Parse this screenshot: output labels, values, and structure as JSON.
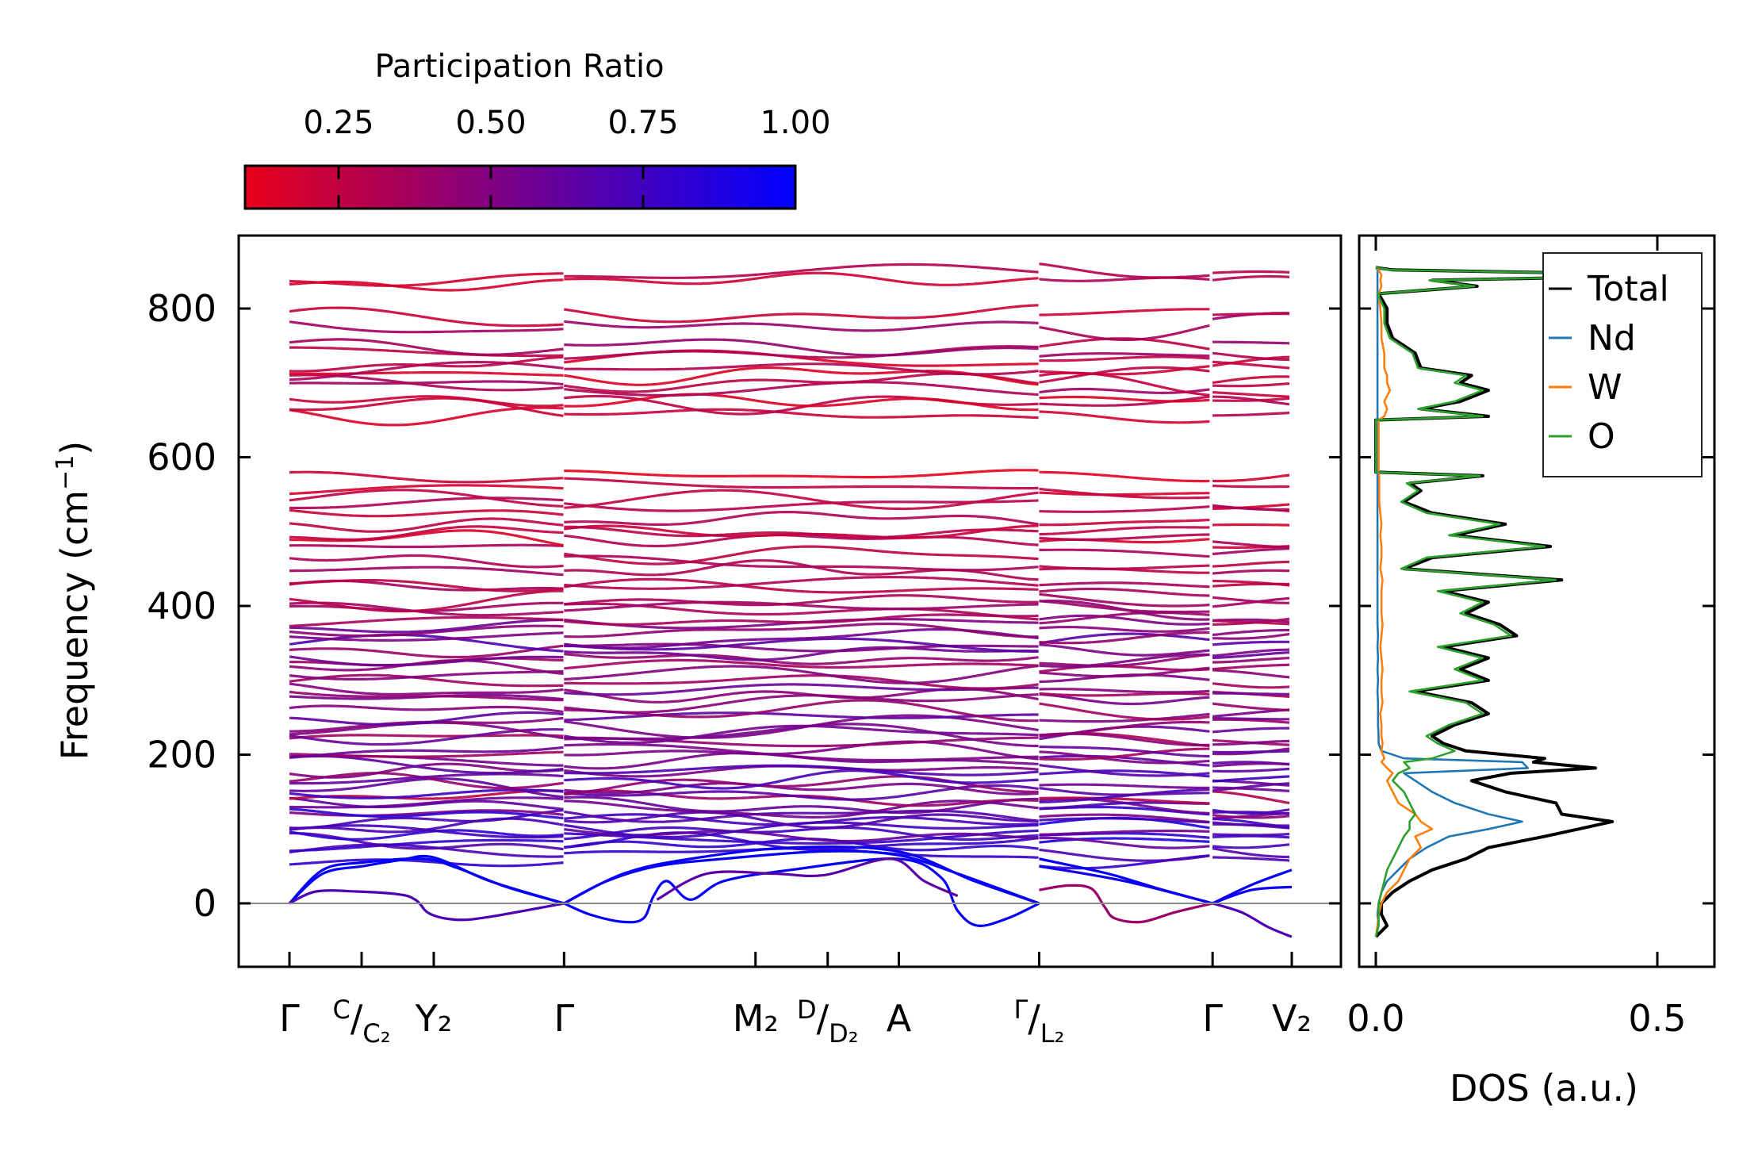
{
  "chart_data": {
    "type": "line",
    "panels": [
      "phonon-band-structure",
      "density-of-states"
    ],
    "colorbar": {
      "title": "Participation Ratio",
      "range": [
        0.095,
        1.0
      ],
      "ticks": [
        0.25,
        0.5,
        0.75,
        1.0
      ],
      "tick_labels": [
        "0.25",
        "0.50",
        "0.75",
        "1.00"
      ],
      "color_low": "#e8001a",
      "color_high": "#0000ff"
    },
    "bands": {
      "ylabel_main": "Frequency (cm",
      "ylabel_sup": "−1",
      "ylabel_close": ")",
      "ylim": [
        -90,
        900
      ],
      "yticks": [
        0,
        200,
        400,
        600,
        800
      ],
      "ytick_labels": [
        "0",
        "200",
        "400",
        "600",
        "800"
      ],
      "zero_line_color": "#8c8c8c",
      "k_distance": [
        0,
        0.216,
        0.432,
        0.822,
        1.395,
        1.611,
        1.824,
        2.244,
        2.763,
        3.0
      ],
      "k_labels": [
        {
          "text": "Γ"
        },
        {
          "top": "C",
          "bottom": "C₂"
        },
        {
          "text": "Y₂"
        },
        {
          "text": "Γ"
        },
        {
          "text": "M₂"
        },
        {
          "top": "D",
          "bottom": "D₂"
        },
        {
          "text": "A"
        },
        {
          "top": "Γ",
          "bottom": "L₂"
        },
        {
          "text": "Γ"
        },
        {
          "text": "V₂"
        }
      ],
      "segments": [
        [
          0,
          0.822
        ],
        [
          0.822,
          2.244
        ],
        [
          2.244,
          2.763
        ],
        [
          2.763,
          3.0
        ]
      ],
      "optical_band_freqs": [
        62,
        70,
        78,
        85,
        92,
        98,
        104,
        110,
        116,
        122,
        128,
        134,
        140,
        146,
        152,
        160,
        168,
        176,
        184,
        192,
        200,
        208,
        216,
        224,
        232,
        240,
        250,
        262,
        272,
        282,
        292,
        300,
        310,
        318,
        326,
        334,
        342,
        350,
        358,
        366,
        374,
        382,
        390,
        398,
        408,
        420,
        432,
        445,
        460,
        472,
        485,
        495,
        505,
        520,
        535,
        548,
        560,
        573,
        660,
        668,
        678,
        688,
        698,
        708,
        718,
        728,
        738,
        752,
        775,
        790,
        838,
        846
      ],
      "optical_band_pr": [
        0.8,
        0.75,
        0.82,
        0.7,
        0.78,
        0.66,
        0.8,
        0.72,
        0.6,
        0.76,
        0.55,
        0.7,
        0.35,
        0.72,
        0.6,
        0.5,
        0.68,
        0.58,
        0.62,
        0.5,
        0.45,
        0.6,
        0.42,
        0.55,
        0.5,
        0.48,
        0.55,
        0.45,
        0.5,
        0.4,
        0.52,
        0.45,
        0.5,
        0.42,
        0.48,
        0.55,
        0.45,
        0.6,
        0.5,
        0.42,
        0.55,
        0.4,
        0.35,
        0.3,
        0.3,
        0.28,
        0.25,
        0.3,
        0.26,
        0.3,
        0.22,
        0.28,
        0.25,
        0.3,
        0.27,
        0.24,
        0.2,
        0.18,
        0.22,
        0.25,
        0.2,
        0.3,
        0.26,
        0.22,
        0.28,
        0.24,
        0.3,
        0.35,
        0.33,
        0.28,
        0.22,
        0.25
      ],
      "acoustic_branches": [
        {
          "pr": 0.98,
          "points": [
            [
              0,
              0
            ],
            [
              0.1,
              40
            ],
            [
              0.22,
              50
            ],
            [
              0.33,
              58
            ],
            [
              0.43,
              62
            ],
            [
              0.6,
              30
            ],
            [
              0.822,
              0
            ]
          ]
        },
        {
          "pr": 0.98,
          "points": [
            [
              0,
              0
            ],
            [
              0.1,
              45
            ],
            [
              0.22,
              55
            ],
            [
              0.4,
              60
            ],
            [
              0.5,
              48
            ],
            [
              0.65,
              22
            ],
            [
              0.822,
              0
            ]
          ]
        },
        {
          "pr": 0.7,
          "points": [
            [
              0,
              0
            ],
            [
              0.08,
              16
            ],
            [
              0.2,
              16
            ],
            [
              0.33,
              12
            ],
            [
              0.38,
              4
            ],
            [
              0.42,
              -14
            ],
            [
              0.5,
              -22
            ],
            [
              0.6,
              -18
            ],
            [
              0.822,
              0
            ]
          ]
        },
        {
          "pr": 0.98,
          "points": [
            [
              0.822,
              0
            ],
            [
              0.9,
              -15
            ],
            [
              1.0,
              -25
            ],
            [
              1.06,
              -20
            ],
            [
              1.09,
              10
            ],
            [
              1.13,
              30
            ],
            [
              1.2,
              5
            ],
            [
              1.3,
              30
            ],
            [
              1.5,
              45
            ],
            [
              1.82,
              60
            ],
            [
              1.95,
              35
            ],
            [
              2.0,
              -10
            ],
            [
              2.06,
              -30
            ],
            [
              2.15,
              -20
            ],
            [
              2.244,
              0
            ]
          ]
        },
        {
          "pr": 0.98,
          "points": [
            [
              0.822,
              0
            ],
            [
              0.95,
              30
            ],
            [
              1.1,
              50
            ],
            [
              1.3,
              60
            ],
            [
              1.6,
              70
            ],
            [
              1.82,
              65
            ],
            [
              2.0,
              40
            ],
            [
              2.244,
              0
            ]
          ]
        },
        {
          "pr": 0.65,
          "points": [
            [
              1.1,
              5
            ],
            [
              1.25,
              40
            ],
            [
              1.45,
              40
            ],
            [
              1.6,
              38
            ],
            [
              1.8,
              60
            ],
            [
              1.9,
              30
            ],
            [
              2.0,
              10
            ]
          ]
        },
        {
          "pr": 0.97,
          "points": [
            [
              0.822,
              0
            ],
            [
              1.0,
              40
            ],
            [
              1.2,
              60
            ],
            [
              1.5,
              75
            ],
            [
              1.82,
              70
            ],
            [
              2.05,
              30
            ],
            [
              2.244,
              0
            ]
          ]
        },
        {
          "pr": 0.4,
          "points": [
            [
              2.244,
              18
            ],
            [
              2.33,
              24
            ],
            [
              2.4,
              20
            ],
            [
              2.44,
              -5
            ],
            [
              2.47,
              -20
            ],
            [
              2.55,
              -25
            ],
            [
              2.65,
              -12
            ],
            [
              2.763,
              0
            ]
          ]
        },
        {
          "pr": 0.98,
          "points": [
            [
              2.244,
              60
            ],
            [
              2.45,
              40
            ],
            [
              2.6,
              20
            ],
            [
              2.763,
              0
            ]
          ]
        },
        {
          "pr": 0.95,
          "points": [
            [
              2.244,
              50
            ],
            [
              2.5,
              30
            ],
            [
              2.763,
              0
            ]
          ]
        },
        {
          "pr": 0.7,
          "points": [
            [
              2.763,
              0
            ],
            [
              2.85,
              -12
            ],
            [
              2.93,
              -32
            ],
            [
              3.0,
              -45
            ]
          ]
        },
        {
          "pr": 0.97,
          "points": [
            [
              2.763,
              0
            ],
            [
              2.88,
              25
            ],
            [
              3.0,
              45
            ]
          ]
        },
        {
          "pr": 0.95,
          "points": [
            [
              2.763,
              0
            ],
            [
              2.88,
              18
            ],
            [
              3.0,
              22
            ]
          ]
        }
      ]
    },
    "dos": {
      "xlabel": "DOS (a.u.)",
      "xlim": [
        -0.03,
        0.6
      ],
      "xticks": [
        0.0,
        0.5
      ],
      "xtick_labels": [
        "0.0",
        "0.5"
      ],
      "legend_position": "top-right",
      "freq": [
        -45,
        -30,
        -15,
        0,
        15,
        30,
        45,
        60,
        75,
        90,
        100,
        110,
        120,
        135,
        150,
        165,
        175,
        182,
        190,
        195,
        205,
        215,
        225,
        240,
        255,
        270,
        285,
        300,
        315,
        330,
        345,
        360,
        375,
        390,
        405,
        420,
        435,
        450,
        465,
        480,
        495,
        510,
        525,
        540,
        555,
        565,
        575,
        580,
        650,
        655,
        665,
        675,
        690,
        700,
        710,
        720,
        740,
        760,
        780,
        800,
        820,
        830,
        838,
        845,
        852,
        855
      ],
      "series": [
        {
          "name": "Total",
          "color": "#000000",
          "values": [
            0,
            0.02,
            0.01,
            0.01,
            0.03,
            0.06,
            0.1,
            0.16,
            0.2,
            0.3,
            0.36,
            0.42,
            0.33,
            0.32,
            0.23,
            0.17,
            0.24,
            0.39,
            0.28,
            0.3,
            0.16,
            0.12,
            0.1,
            0.14,
            0.2,
            0.17,
            0.07,
            0.2,
            0.15,
            0.2,
            0.12,
            0.25,
            0.22,
            0.16,
            0.2,
            0.12,
            0.33,
            0.05,
            0.1,
            0.31,
            0.14,
            0.23,
            0.1,
            0.05,
            0.08,
            0.06,
            0.19,
            0.0,
            0.0,
            0.2,
            0.08,
            0.15,
            0.2,
            0.15,
            0.17,
            0.08,
            0.07,
            0.03,
            0.02,
            0.02,
            0.005,
            0.18,
            0.1,
            0.57,
            0.03,
            0
          ]
        },
        {
          "name": "Nd",
          "color": "#1f77b4",
          "values": [
            0,
            0.005,
            0.003,
            0.005,
            0.01,
            0.02,
            0.04,
            0.06,
            0.09,
            0.13,
            0.2,
            0.26,
            0.2,
            0.14,
            0.1,
            0.07,
            0.05,
            0.27,
            0.26,
            0.05,
            0.01,
            0.005,
            0.005,
            0.004,
            0.004,
            0.004,
            0.003,
            0.004,
            0.003,
            0.004,
            0.003,
            0.004,
            0.003,
            0.003,
            0.003,
            0.003,
            0.003,
            0.003,
            0.003,
            0.003,
            0.003,
            0.003,
            0.003,
            0.003,
            0.003,
            0.003,
            0.003,
            0.003,
            0.003,
            0.003,
            0.003,
            0.003,
            0.003,
            0.003,
            0.003,
            0.003,
            0.003,
            0.003,
            0.003,
            0.003,
            0.003,
            0.003,
            0.003,
            0.003,
            0.003,
            0
          ]
        },
        {
          "name": "W",
          "color": "#ff7f0e",
          "values": [
            0,
            0.003,
            0.005,
            0.01,
            0.02,
            0.04,
            0.05,
            0.06,
            0.08,
            0.07,
            0.1,
            0.08,
            0.07,
            0.04,
            0.03,
            0.02,
            0.03,
            0.02,
            0.01,
            0.015,
            0.01,
            0.012,
            0.01,
            0.01,
            0.008,
            0.012,
            0.01,
            0.01,
            0.012,
            0.01,
            0.008,
            0.01,
            0.012,
            0.01,
            0.01,
            0.01,
            0.012,
            0.008,
            0.01,
            0.01,
            0.008,
            0.01,
            0.008,
            0.006,
            0.006,
            0.006,
            0.006,
            0.005,
            0.005,
            0.015,
            0.02,
            0.015,
            0.025,
            0.02,
            0.02,
            0.015,
            0.015,
            0.01,
            0.01,
            0.008,
            0.005,
            0.01,
            0.008,
            0.01,
            0.005,
            0
          ]
        },
        {
          "name": "O",
          "color": "#2ca02c",
          "values": [
            0,
            0.005,
            0.005,
            0.005,
            0.01,
            0.015,
            0.02,
            0.03,
            0.04,
            0.05,
            0.06,
            0.06,
            0.07,
            0.06,
            0.05,
            0.03,
            0.04,
            0.06,
            0.05,
            0.1,
            0.14,
            0.11,
            0.09,
            0.13,
            0.19,
            0.16,
            0.06,
            0.19,
            0.14,
            0.19,
            0.11,
            0.24,
            0.21,
            0.15,
            0.19,
            0.11,
            0.32,
            0.045,
            0.09,
            0.3,
            0.13,
            0.22,
            0.09,
            0.045,
            0.075,
            0.055,
            0.185,
            0.0,
            0.0,
            0.19,
            0.075,
            0.14,
            0.19,
            0.14,
            0.16,
            0.075,
            0.065,
            0.025,
            0.015,
            0.015,
            0.003,
            0.175,
            0.095,
            0.56,
            0.025,
            0
          ]
        }
      ]
    }
  }
}
